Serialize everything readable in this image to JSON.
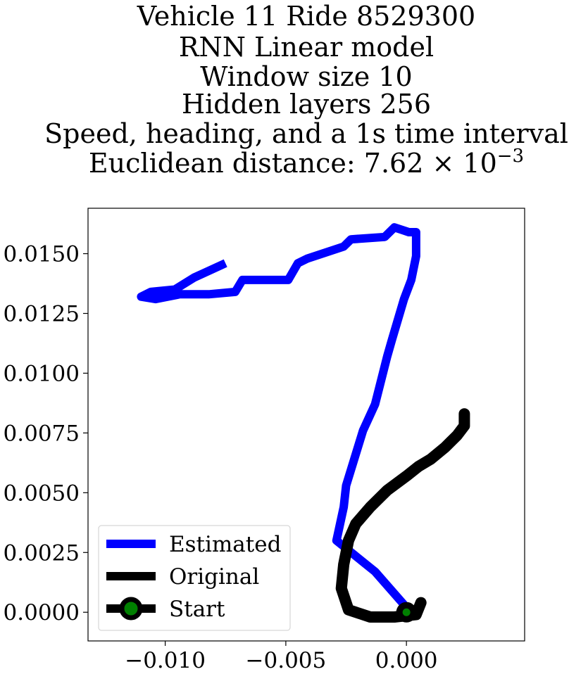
{
  "chart_data": {
    "type": "line",
    "title_lines": [
      "Vehicle 11 Ride 8529300",
      "RNN Linear model",
      "Window size 10",
      "Hidden layers 256",
      "Speed, heading, and a 1s time interval"
    ],
    "distance_prefix": "Euclidean distance: ",
    "distance_mantissa": "7.62",
    "distance_exponent": "−3",
    "xlim": [
      -0.0132,
      0.0049
    ],
    "ylim": [
      -0.0012,
      0.0169
    ],
    "xticks": [
      -0.01,
      -0.005,
      0.0
    ],
    "xtick_labels": [
      "−0.010",
      "−0.005",
      "0.000"
    ],
    "yticks": [
      0.0,
      0.0025,
      0.005,
      0.0075,
      0.01,
      0.0125,
      0.015
    ],
    "ytick_labels": [
      "0.0000",
      "0.0025",
      "0.0050",
      "0.0075",
      "0.0100",
      "0.0125",
      "0.0150"
    ],
    "legend_position": "lower-left",
    "series": [
      {
        "name": "Estimated",
        "color": "#0000ff",
        "x": [
          0.0,
          -0.0013,
          -0.0029,
          -0.0026,
          -0.0025,
          -0.0018,
          -0.0013,
          -0.0008,
          -0.0006,
          -0.0001,
          0.0002,
          0.0004,
          0.0004,
          0.0001,
          -0.0002,
          -0.0005,
          -0.0009,
          -0.0023,
          -0.0026,
          -0.0041,
          -0.0045,
          -0.0049,
          -0.0068,
          -0.0071,
          -0.0082,
          -0.0087,
          -0.0094,
          -0.0104,
          -0.011,
          -0.0106,
          -0.0096,
          -0.0088,
          -0.0075
        ],
        "y": [
          0.0002,
          0.0017,
          0.003,
          0.0044,
          0.0053,
          0.0076,
          0.0087,
          0.0107,
          0.0114,
          0.0131,
          0.0139,
          0.0149,
          0.0159,
          0.0159,
          0.016,
          0.0161,
          0.0157,
          0.0156,
          0.0153,
          0.0148,
          0.0146,
          0.0139,
          0.0139,
          0.0134,
          0.0133,
          0.0133,
          0.0133,
          0.0131,
          0.0132,
          0.0134,
          0.0135,
          0.014,
          0.0146
        ]
      },
      {
        "name": "Original",
        "color": "#000000",
        "x": [
          0.0006,
          0.0004,
          -0.0005,
          -0.0015,
          -0.0024,
          -0.0027,
          -0.0026,
          -0.0024,
          -0.0021,
          -0.0015,
          -0.0008,
          0.0,
          0.0005,
          0.001,
          0.0016,
          0.0021,
          0.0024,
          0.0024
        ],
        "y": [
          0.0004,
          -0.0001,
          -0.0002,
          -0.0002,
          0.0001,
          0.001,
          0.002,
          0.003,
          0.0037,
          0.0044,
          0.0051,
          0.0057,
          0.0061,
          0.0064,
          0.0069,
          0.0074,
          0.0078,
          0.0083
        ]
      }
    ],
    "start": {
      "name": "Start",
      "x": 0.0,
      "y": 0.0,
      "edge_color": "#000000",
      "face_color": "#008000"
    }
  }
}
